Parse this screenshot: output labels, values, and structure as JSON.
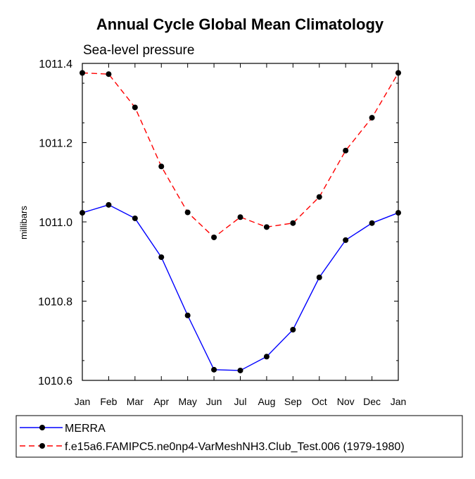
{
  "chart_data": {
    "type": "line",
    "title": "Annual Cycle Global Mean Climatology",
    "subtitle": "Sea-level pressure",
    "ylabel": "millibars",
    "xlabel": "",
    "categories": [
      "Jan",
      "Feb",
      "Mar",
      "Apr",
      "May",
      "Jun",
      "Jul",
      "Aug",
      "Sep",
      "Oct",
      "Nov",
      "Dec",
      "Jan"
    ],
    "ylim": [
      1010.6,
      1011.4
    ],
    "yticks": [
      "1010.6",
      "1010.8",
      "1011.0",
      "1011.2",
      "1011.4"
    ],
    "grid": false,
    "legend_position": "bottom",
    "series": [
      {
        "name": "MERRA",
        "color": "#0000ff",
        "line_style": "solid",
        "marker": "circle",
        "values": [
          1011.023,
          1011.043,
          1011.009,
          1010.911,
          1010.764,
          1010.627,
          1010.625,
          1010.66,
          1010.728,
          1010.86,
          1010.954,
          1010.997,
          1011.023
        ]
      },
      {
        "name": "f.e15a6.FAMIPC5.ne0np4-VarMeshNH3.Club_Test.006 (1979-1980)",
        "color": "#ff0000",
        "line_style": "dashed",
        "marker": "circle",
        "values": [
          1011.376,
          1011.373,
          1011.289,
          1011.14,
          1011.024,
          1010.961,
          1011.012,
          1010.987,
          1010.997,
          1011.063,
          1011.18,
          1011.263,
          1011.376
        ]
      }
    ]
  }
}
